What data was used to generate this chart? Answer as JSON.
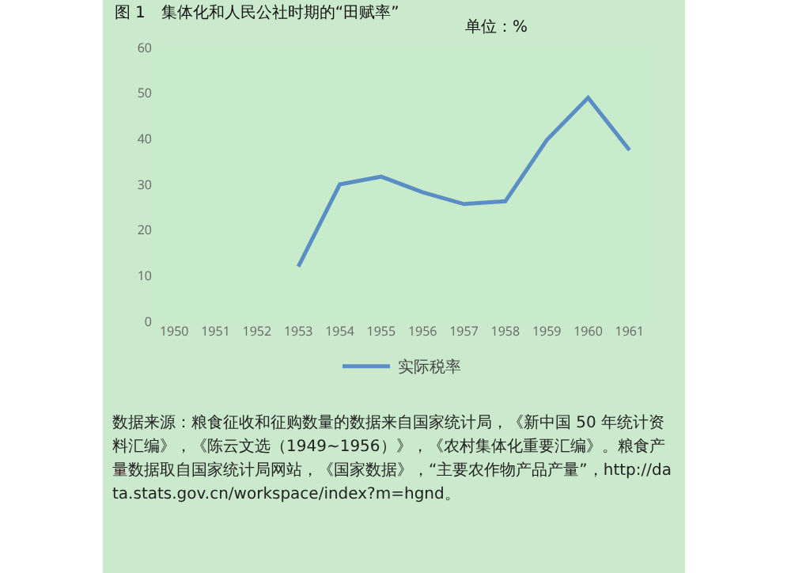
{
  "chart_data": {
    "type": "line",
    "title": "图 1　集体化和人民公社时期的“田赋率”",
    "subtitle": "单位：%",
    "categories": [
      "1950",
      "1951",
      "1952",
      "1953",
      "1954",
      "1955",
      "1956",
      "1957",
      "1958",
      "1959",
      "1960",
      "1961"
    ],
    "series": [
      {
        "name": "实际税率",
        "color": "#5b8ec4",
        "values": [
          null,
          null,
          null,
          12,
          30,
          31.7,
          28.3,
          25.7,
          26.3,
          39.7,
          49,
          37.5
        ]
      }
    ],
    "ylim": [
      0,
      60
    ],
    "yticks": [
      0,
      10,
      20,
      30,
      40,
      50,
      60
    ],
    "grid": false,
    "legend": "bottom",
    "annotations": [
      "数据来源：粮食征收和征购数量的数据来自国家统计局，《新中国 50 年统计资料汇编》，《陈云文选（1949~1956）》，《农村集体化重要汇编》。粮食产量数据取自国家统计局网站，《国家数据》，“主要农作物产品产量”，http://data.stats.gov.cn/workspace/index?m=hgnd。"
    ]
  }
}
